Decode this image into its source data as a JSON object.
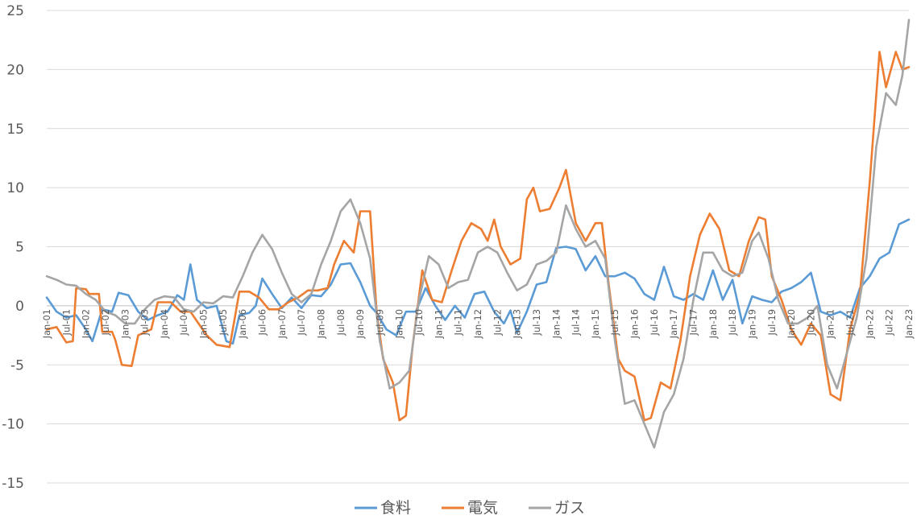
{
  "chart_data": {
    "type": "line",
    "title": "",
    "xlabel": "",
    "ylabel": "",
    "ylim": [
      -15,
      25
    ],
    "yticks": [
      -15,
      -10,
      -5,
      0,
      5,
      10,
      15,
      20,
      25
    ],
    "grid": true,
    "legend_position": "bottom",
    "x_start": "2001-01",
    "x_end": "2023-01",
    "x_tick_labels": [
      "Jan-01",
      "Jul-01",
      "Jan-02",
      "Jul-02",
      "Jan-03",
      "Jul-03",
      "Jan-04",
      "Jul-04",
      "Jan-05",
      "Jul-05",
      "Jan-06",
      "Jul-06",
      "Jan-07",
      "Jul-07",
      "Jan-08",
      "Jul-08",
      "Jan-09",
      "Jul-09",
      "Jan-10",
      "Jul-10",
      "Jan-11",
      "Jul-11",
      "Jan-12",
      "Jul-12",
      "Jan-13",
      "Jul-13",
      "Jan-14",
      "Jul-14",
      "Jan-15",
      "Jul-15",
      "Jan-16",
      "Jul-16",
      "Jan-17",
      "Jul-17",
      "Jan-18",
      "Jul-18",
      "Jan-19",
      "Jul-19",
      "Jan-20",
      "Jul-20",
      "Jan-21",
      "Jul-21",
      "Jan-22",
      "Jul-22",
      "Jan-23"
    ],
    "series": [
      {
        "name": "食料",
        "color": "#5b9bd5",
        "points": [
          [
            "2001-01",
            0.7
          ],
          [
            "2001-04",
            -0.5
          ],
          [
            "2001-07",
            -1.0
          ],
          [
            "2001-10",
            -0.8
          ],
          [
            "2002-01",
            -2.0
          ],
          [
            "2002-03",
            -3.0
          ],
          [
            "2002-06",
            -0.3
          ],
          [
            "2002-09",
            -0.5
          ],
          [
            "2002-11",
            1.1
          ],
          [
            "2003-02",
            0.9
          ],
          [
            "2003-05",
            -0.5
          ],
          [
            "2003-08",
            -1.2
          ],
          [
            "2003-11",
            -0.8
          ],
          [
            "2004-02",
            -0.5
          ],
          [
            "2004-05",
            0.9
          ],
          [
            "2004-07",
            0.5
          ],
          [
            "2004-09",
            3.5
          ],
          [
            "2004-11",
            0.5
          ],
          [
            "2005-02",
            -0.2
          ],
          [
            "2005-05",
            0.0
          ],
          [
            "2005-08",
            -3.0
          ],
          [
            "2005-10",
            -3.2
          ],
          [
            "2005-12",
            -0.8
          ],
          [
            "2006-03",
            -0.6
          ],
          [
            "2006-05",
            0.0
          ],
          [
            "2006-07",
            2.3
          ],
          [
            "2006-10",
            1.0
          ],
          [
            "2007-01",
            -0.2
          ],
          [
            "2007-04",
            0.7
          ],
          [
            "2007-07",
            -0.2
          ],
          [
            "2007-10",
            0.9
          ],
          [
            "2008-01",
            0.8
          ],
          [
            "2008-04",
            1.8
          ],
          [
            "2008-07",
            3.5
          ],
          [
            "2008-10",
            3.6
          ],
          [
            "2009-01",
            2.0
          ],
          [
            "2009-04",
            0.0
          ],
          [
            "2009-06",
            -0.6
          ],
          [
            "2009-09",
            -2.0
          ],
          [
            "2009-12",
            -2.5
          ],
          [
            "2010-03",
            -0.5
          ],
          [
            "2010-06",
            -0.5
          ],
          [
            "2010-09",
            1.5
          ],
          [
            "2010-12",
            0.0
          ],
          [
            "2011-03",
            -1.2
          ],
          [
            "2011-06",
            0.0
          ],
          [
            "2011-09",
            -1.0
          ],
          [
            "2011-12",
            1.0
          ],
          [
            "2012-03",
            1.2
          ],
          [
            "2012-06",
            -0.5
          ],
          [
            "2012-09",
            -1.5
          ],
          [
            "2012-11",
            -0.4
          ],
          [
            "2013-01",
            -2.3
          ],
          [
            "2013-04",
            -0.5
          ],
          [
            "2013-07",
            1.8
          ],
          [
            "2013-10",
            2.0
          ],
          [
            "2014-01",
            4.9
          ],
          [
            "2014-04",
            5.0
          ],
          [
            "2014-07",
            4.8
          ],
          [
            "2014-10",
            3.0
          ],
          [
            "2015-01",
            4.2
          ],
          [
            "2015-04",
            2.5
          ],
          [
            "2015-07",
            2.5
          ],
          [
            "2015-10",
            2.8
          ],
          [
            "2016-01",
            2.3
          ],
          [
            "2016-04",
            1.0
          ],
          [
            "2016-07",
            0.5
          ],
          [
            "2016-10",
            3.3
          ],
          [
            "2017-01",
            0.8
          ],
          [
            "2017-04",
            0.5
          ],
          [
            "2017-07",
            1.0
          ],
          [
            "2017-10",
            0.5
          ],
          [
            "2018-01",
            3.0
          ],
          [
            "2018-04",
            0.5
          ],
          [
            "2018-07",
            2.2
          ],
          [
            "2018-10",
            -1.5
          ],
          [
            "2019-01",
            0.8
          ],
          [
            "2019-04",
            0.5
          ],
          [
            "2019-07",
            0.3
          ],
          [
            "2019-10",
            1.2
          ],
          [
            "2020-01",
            1.5
          ],
          [
            "2020-04",
            2.0
          ],
          [
            "2020-07",
            2.8
          ],
          [
            "2020-10",
            -0.5
          ],
          [
            "2021-01",
            -0.8
          ],
          [
            "2021-04",
            -0.5
          ],
          [
            "2021-07",
            -1.0
          ],
          [
            "2021-10",
            1.5
          ],
          [
            "2022-01",
            2.5
          ],
          [
            "2022-04",
            4.0
          ],
          [
            "2022-07",
            4.5
          ],
          [
            "2022-10",
            6.9
          ],
          [
            "2023-01",
            7.3
          ]
        ]
      },
      {
        "name": "電気",
        "color": "#ed7d31",
        "points": [
          [
            "2001-01",
            -2.0
          ],
          [
            "2001-04",
            -1.8
          ],
          [
            "2001-07",
            -3.1
          ],
          [
            "2001-09",
            -3.0
          ],
          [
            "2001-10",
            1.5
          ],
          [
            "2002-01",
            1.4
          ],
          [
            "2002-02",
            1.0
          ],
          [
            "2002-05",
            1.0
          ],
          [
            "2002-06",
            -2.2
          ],
          [
            "2002-09",
            -2.2
          ],
          [
            "2002-10",
            -2.9
          ],
          [
            "2002-12",
            -5.0
          ],
          [
            "2003-03",
            -5.1
          ],
          [
            "2003-05",
            -2.5
          ],
          [
            "2003-09",
            -2.0
          ],
          [
            "2003-11",
            0.3
          ],
          [
            "2004-03",
            0.3
          ],
          [
            "2004-06",
            -0.5
          ],
          [
            "2004-09",
            -0.5
          ],
          [
            "2004-11",
            -1.3
          ],
          [
            "2005-02",
            -2.5
          ],
          [
            "2005-05",
            -3.3
          ],
          [
            "2005-09",
            -3.5
          ],
          [
            "2005-12",
            1.2
          ],
          [
            "2006-03",
            1.2
          ],
          [
            "2006-06",
            0.7
          ],
          [
            "2006-09",
            -0.3
          ],
          [
            "2006-12",
            -0.3
          ],
          [
            "2007-03",
            0.3
          ],
          [
            "2007-06",
            0.7
          ],
          [
            "2007-09",
            1.3
          ],
          [
            "2007-12",
            1.3
          ],
          [
            "2008-03",
            1.5
          ],
          [
            "2008-05",
            3.5
          ],
          [
            "2008-08",
            5.5
          ],
          [
            "2008-11",
            4.5
          ],
          [
            "2009-01",
            8.0
          ],
          [
            "2009-04",
            8.0
          ],
          [
            "2009-06",
            -0.5
          ],
          [
            "2009-08",
            -4.5
          ],
          [
            "2009-11",
            -6.5
          ],
          [
            "2010-01",
            -9.7
          ],
          [
            "2010-03",
            -9.3
          ],
          [
            "2010-05",
            -3.5
          ],
          [
            "2010-08",
            3.0
          ],
          [
            "2010-11",
            0.5
          ],
          [
            "2011-02",
            0.3
          ],
          [
            "2011-05",
            3.0
          ],
          [
            "2011-08",
            5.5
          ],
          [
            "2011-11",
            7.0
          ],
          [
            "2012-02",
            6.5
          ],
          [
            "2012-04",
            5.5
          ],
          [
            "2012-06",
            7.3
          ],
          [
            "2012-08",
            5.0
          ],
          [
            "2012-11",
            3.5
          ],
          [
            "2013-02",
            4.0
          ],
          [
            "2013-04",
            9.0
          ],
          [
            "2013-06",
            10.0
          ],
          [
            "2013-08",
            8.0
          ],
          [
            "2013-11",
            8.2
          ],
          [
            "2014-02",
            10.0
          ],
          [
            "2014-04",
            11.5
          ],
          [
            "2014-07",
            7.0
          ],
          [
            "2014-10",
            5.5
          ],
          [
            "2015-01",
            7.0
          ],
          [
            "2015-03",
            7.0
          ],
          [
            "2015-05",
            2.0
          ],
          [
            "2015-08",
            -4.5
          ],
          [
            "2015-10",
            -5.5
          ],
          [
            "2016-01",
            -6.0
          ],
          [
            "2016-04",
            -9.7
          ],
          [
            "2016-06",
            -9.5
          ],
          [
            "2016-09",
            -6.5
          ],
          [
            "2016-12",
            -7.0
          ],
          [
            "2017-03",
            -3.0
          ],
          [
            "2017-06",
            2.5
          ],
          [
            "2017-09",
            6.0
          ],
          [
            "2017-12",
            7.8
          ],
          [
            "2018-03",
            6.5
          ],
          [
            "2018-06",
            3.0
          ],
          [
            "2018-09",
            2.5
          ],
          [
            "2018-12",
            5.5
          ],
          [
            "2019-03",
            7.5
          ],
          [
            "2019-05",
            7.3
          ],
          [
            "2019-07",
            2.5
          ],
          [
            "2019-10",
            0.5
          ],
          [
            "2020-01",
            -2.0
          ],
          [
            "2020-04",
            -3.3
          ],
          [
            "2020-07",
            -1.5
          ],
          [
            "2020-10",
            -2.5
          ],
          [
            "2021-01",
            -7.5
          ],
          [
            "2021-04",
            -8.0
          ],
          [
            "2021-07",
            -2.0
          ],
          [
            "2021-10",
            1.0
          ],
          [
            "2022-01",
            10.5
          ],
          [
            "2022-04",
            21.5
          ],
          [
            "2022-06",
            18.5
          ],
          [
            "2022-09",
            21.5
          ],
          [
            "2022-11",
            20.0
          ],
          [
            "2023-01",
            20.2
          ]
        ]
      },
      {
        "name": "ガス",
        "color": "#a5a5a5",
        "points": [
          [
            "2001-01",
            2.5
          ],
          [
            "2001-04",
            2.2
          ],
          [
            "2001-07",
            1.8
          ],
          [
            "2001-10",
            1.7
          ],
          [
            "2002-01",
            1.0
          ],
          [
            "2002-04",
            0.5
          ],
          [
            "2002-07",
            -0.5
          ],
          [
            "2002-10",
            -0.8
          ],
          [
            "2003-01",
            -1.5
          ],
          [
            "2003-04",
            -1.5
          ],
          [
            "2003-07",
            -0.3
          ],
          [
            "2003-10",
            0.5
          ],
          [
            "2004-01",
            0.8
          ],
          [
            "2004-04",
            0.7
          ],
          [
            "2004-07",
            -0.3
          ],
          [
            "2004-10",
            -0.5
          ],
          [
            "2005-01",
            0.3
          ],
          [
            "2005-04",
            0.2
          ],
          [
            "2005-07",
            0.8
          ],
          [
            "2005-10",
            0.7
          ],
          [
            "2006-01",
            2.5
          ],
          [
            "2006-04",
            4.5
          ],
          [
            "2006-07",
            6.0
          ],
          [
            "2006-10",
            4.8
          ],
          [
            "2007-01",
            2.8
          ],
          [
            "2007-04",
            1.0
          ],
          [
            "2007-07",
            0.3
          ],
          [
            "2007-10",
            1.0
          ],
          [
            "2008-01",
            3.5
          ],
          [
            "2008-04",
            5.5
          ],
          [
            "2008-07",
            8.0
          ],
          [
            "2008-10",
            9.0
          ],
          [
            "2009-01",
            7.0
          ],
          [
            "2009-04",
            4.0
          ],
          [
            "2009-07",
            -3.0
          ],
          [
            "2009-10",
            -7.0
          ],
          [
            "2010-01",
            -6.5
          ],
          [
            "2010-04",
            -5.5
          ],
          [
            "2010-07",
            0.5
          ],
          [
            "2010-10",
            4.2
          ],
          [
            "2011-01",
            3.5
          ],
          [
            "2011-04",
            1.5
          ],
          [
            "2011-07",
            2.0
          ],
          [
            "2011-10",
            2.2
          ],
          [
            "2012-01",
            4.5
          ],
          [
            "2012-04",
            5.0
          ],
          [
            "2012-07",
            4.5
          ],
          [
            "2012-10",
            2.8
          ],
          [
            "2013-01",
            1.3
          ],
          [
            "2013-04",
            1.8
          ],
          [
            "2013-07",
            3.5
          ],
          [
            "2013-10",
            3.8
          ],
          [
            "2014-01",
            4.5
          ],
          [
            "2014-04",
            8.5
          ],
          [
            "2014-07",
            6.5
          ],
          [
            "2014-10",
            5.0
          ],
          [
            "2015-01",
            5.5
          ],
          [
            "2015-04",
            4.0
          ],
          [
            "2015-07",
            -3.0
          ],
          [
            "2015-10",
            -8.3
          ],
          [
            "2016-01",
            -8.0
          ],
          [
            "2016-04",
            -10.0
          ],
          [
            "2016-07",
            -12.0
          ],
          [
            "2016-10",
            -9.0
          ],
          [
            "2017-01",
            -7.5
          ],
          [
            "2017-04",
            -4.5
          ],
          [
            "2017-07",
            0.5
          ],
          [
            "2017-10",
            4.5
          ],
          [
            "2018-01",
            4.5
          ],
          [
            "2018-04",
            3.0
          ],
          [
            "2018-07",
            2.5
          ],
          [
            "2018-10",
            2.8
          ],
          [
            "2019-01",
            5.5
          ],
          [
            "2019-03",
            6.2
          ],
          [
            "2019-06",
            4.0
          ],
          [
            "2019-09",
            0.5
          ],
          [
            "2019-12",
            -1.5
          ],
          [
            "2020-03",
            -1.5
          ],
          [
            "2020-06",
            -1.0
          ],
          [
            "2020-09",
            0.0
          ],
          [
            "2020-12",
            -5.0
          ],
          [
            "2021-03",
            -7.0
          ],
          [
            "2021-06",
            -4.0
          ],
          [
            "2021-09",
            -1.0
          ],
          [
            "2021-12",
            4.0
          ],
          [
            "2022-03",
            13.5
          ],
          [
            "2022-06",
            18.0
          ],
          [
            "2022-09",
            17.0
          ],
          [
            "2022-11",
            19.5
          ],
          [
            "2023-01",
            24.2
          ]
        ]
      }
    ]
  }
}
